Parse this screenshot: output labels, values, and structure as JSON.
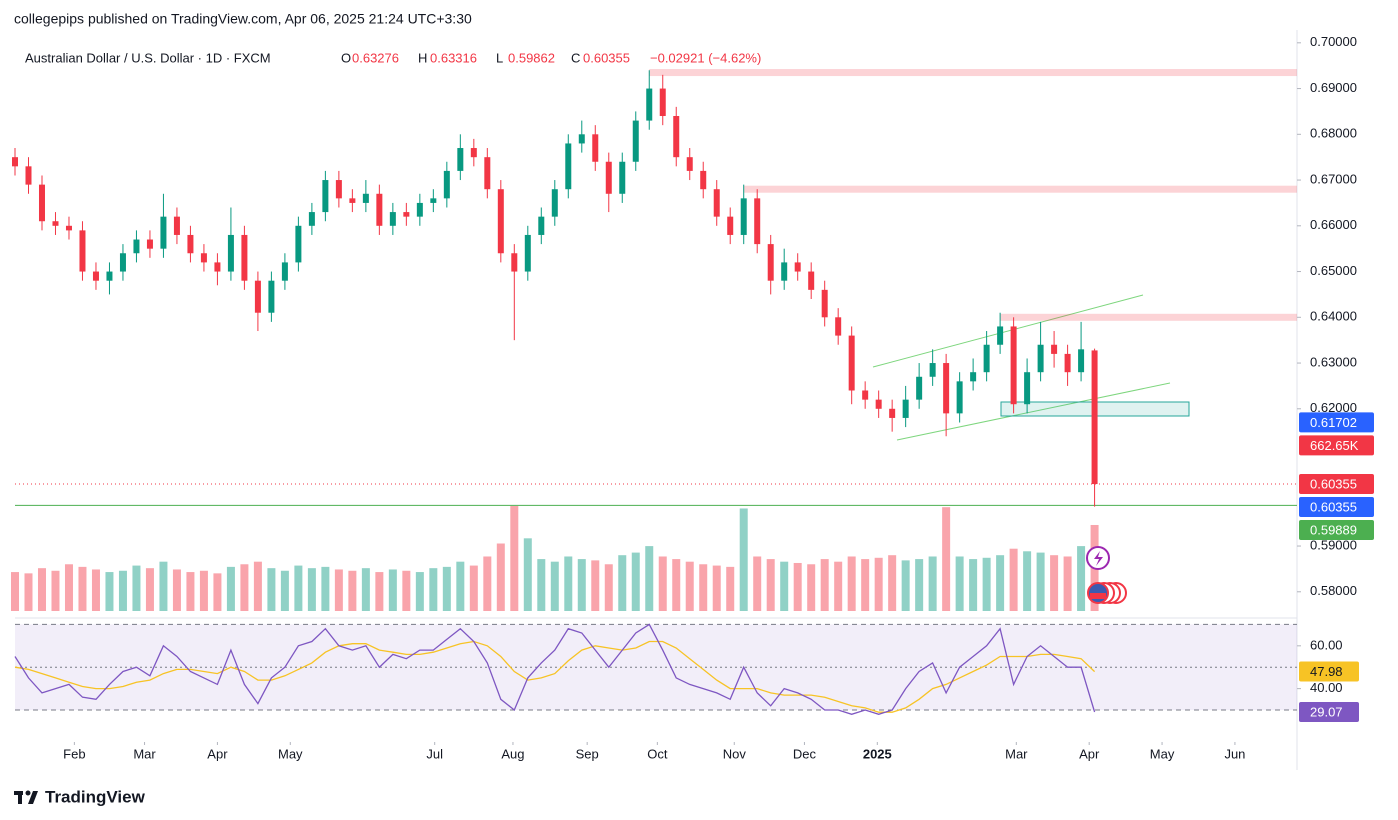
{
  "chart_data": {
    "type": "candlestick",
    "publisher": "collegepips published on TradingView.com, Apr 06, 2025 21:24 UTC+3:30",
    "symbol": "Australian Dollar / U.S. Dollar · 1D · FXCM",
    "ohlc_labels": [
      "O",
      "H",
      "L",
      "C"
    ],
    "change": "−0.02921 (−4.62%)",
    "brand": "TradingView",
    "up_color": "#089981",
    "down_color": "#f23645",
    "ohlc": [
      [
        0.675,
        0.677,
        0.671,
        0.673
      ],
      [
        0.673,
        0.675,
        0.667,
        0.669
      ],
      [
        0.669,
        0.671,
        0.659,
        0.661
      ],
      [
        0.661,
        0.663,
        0.658,
        0.66
      ],
      [
        0.66,
        0.662,
        0.657,
        0.659
      ],
      [
        0.659,
        0.661,
        0.648,
        0.65
      ],
      [
        0.65,
        0.652,
        0.646,
        0.648
      ],
      [
        0.648,
        0.652,
        0.645,
        0.65
      ],
      [
        0.65,
        0.656,
        0.648,
        0.654
      ],
      [
        0.654,
        0.659,
        0.652,
        0.657
      ],
      [
        0.657,
        0.659,
        0.653,
        0.655
      ],
      [
        0.655,
        0.667,
        0.653,
        0.662
      ],
      [
        0.662,
        0.664,
        0.656,
        0.658
      ],
      [
        0.658,
        0.66,
        0.652,
        0.654
      ],
      [
        0.654,
        0.656,
        0.65,
        0.652
      ],
      [
        0.652,
        0.654,
        0.647,
        0.65
      ],
      [
        0.65,
        0.664,
        0.648,
        0.658
      ],
      [
        0.658,
        0.66,
        0.646,
        0.648
      ],
      [
        0.648,
        0.65,
        0.637,
        0.641
      ],
      [
        0.641,
        0.65,
        0.639,
        0.648
      ],
      [
        0.648,
        0.654,
        0.646,
        0.652
      ],
      [
        0.652,
        0.662,
        0.65,
        0.66
      ],
      [
        0.66,
        0.665,
        0.658,
        0.663
      ],
      [
        0.663,
        0.672,
        0.661,
        0.67
      ],
      [
        0.67,
        0.672,
        0.664,
        0.666
      ],
      [
        0.666,
        0.668,
        0.663,
        0.665
      ],
      [
        0.665,
        0.67,
        0.663,
        0.667
      ],
      [
        0.667,
        0.669,
        0.658,
        0.66
      ],
      [
        0.66,
        0.665,
        0.658,
        0.663
      ],
      [
        0.663,
        0.665,
        0.66,
        0.662
      ],
      [
        0.662,
        0.667,
        0.66,
        0.665
      ],
      [
        0.665,
        0.668,
        0.663,
        0.666
      ],
      [
        0.666,
        0.674,
        0.664,
        0.672
      ],
      [
        0.672,
        0.68,
        0.67,
        0.677
      ],
      [
        0.677,
        0.679,
        0.673,
        0.675
      ],
      [
        0.675,
        0.677,
        0.666,
        0.668
      ],
      [
        0.668,
        0.67,
        0.652,
        0.654
      ],
      [
        0.654,
        0.656,
        0.635,
        0.65
      ],
      [
        0.65,
        0.66,
        0.648,
        0.658
      ],
      [
        0.658,
        0.664,
        0.656,
        0.662
      ],
      [
        0.662,
        0.67,
        0.66,
        0.668
      ],
      [
        0.668,
        0.68,
        0.666,
        0.678
      ],
      [
        0.678,
        0.683,
        0.676,
        0.68
      ],
      [
        0.68,
        0.682,
        0.672,
        0.674
      ],
      [
        0.674,
        0.676,
        0.663,
        0.667
      ],
      [
        0.667,
        0.676,
        0.665,
        0.674
      ],
      [
        0.674,
        0.685,
        0.672,
        0.683
      ],
      [
        0.683,
        0.694,
        0.681,
        0.69
      ],
      [
        0.69,
        0.693,
        0.682,
        0.684
      ],
      [
        0.684,
        0.686,
        0.673,
        0.675
      ],
      [
        0.675,
        0.677,
        0.67,
        0.672
      ],
      [
        0.672,
        0.674,
        0.666,
        0.668
      ],
      [
        0.668,
        0.67,
        0.66,
        0.662
      ],
      [
        0.662,
        0.664,
        0.656,
        0.658
      ],
      [
        0.658,
        0.669,
        0.656,
        0.666
      ],
      [
        0.666,
        0.668,
        0.654,
        0.656
      ],
      [
        0.656,
        0.658,
        0.645,
        0.648
      ],
      [
        0.648,
        0.655,
        0.646,
        0.652
      ],
      [
        0.652,
        0.654,
        0.648,
        0.65
      ],
      [
        0.65,
        0.652,
        0.644,
        0.646
      ],
      [
        0.646,
        0.648,
        0.638,
        0.64
      ],
      [
        0.64,
        0.642,
        0.634,
        0.636
      ],
      [
        0.636,
        0.638,
        0.621,
        0.624
      ],
      [
        0.624,
        0.626,
        0.62,
        0.622
      ],
      [
        0.622,
        0.624,
        0.618,
        0.62
      ],
      [
        0.62,
        0.622,
        0.615,
        0.618
      ],
      [
        0.618,
        0.625,
        0.616,
        0.622
      ],
      [
        0.622,
        0.63,
        0.62,
        0.627
      ],
      [
        0.627,
        0.633,
        0.625,
        0.63
      ],
      [
        0.63,
        0.632,
        0.614,
        0.619
      ],
      [
        0.619,
        0.628,
        0.617,
        0.626
      ],
      [
        0.626,
        0.631,
        0.624,
        0.628
      ],
      [
        0.628,
        0.637,
        0.626,
        0.634
      ],
      [
        0.634,
        0.641,
        0.632,
        0.638
      ],
      [
        0.638,
        0.64,
        0.619,
        0.621
      ],
      [
        0.621,
        0.631,
        0.619,
        0.628
      ],
      [
        0.628,
        0.639,
        0.626,
        0.634
      ],
      [
        0.634,
        0.637,
        0.629,
        0.632
      ],
      [
        0.632,
        0.634,
        0.625,
        0.628
      ],
      [
        0.628,
        0.639,
        0.626,
        0.633
      ],
      [
        0.63276,
        0.63316,
        0.59862,
        0.60355
      ]
    ],
    "volume": [
      300,
      290,
      330,
      310,
      360,
      340,
      320,
      300,
      310,
      350,
      330,
      380,
      320,
      300,
      310,
      290,
      340,
      360,
      380,
      330,
      310,
      350,
      330,
      340,
      320,
      310,
      330,
      300,
      320,
      310,
      300,
      330,
      340,
      380,
      350,
      420,
      520,
      809,
      560,
      400,
      380,
      420,
      400,
      390,
      360,
      430,
      450,
      500,
      420,
      400,
      380,
      360,
      350,
      340,
      790,
      420,
      400,
      380,
      370,
      360,
      400,
      380,
      420,
      400,
      410,
      430,
      390,
      400,
      420,
      800,
      420,
      400,
      410,
      430,
      480,
      460,
      450,
      430,
      420,
      500,
      662.65
    ],
    "volume_label": "662.65K",
    "rsi": [
      55,
      45,
      38,
      40,
      42,
      36,
      35,
      42,
      48,
      50,
      46,
      60,
      55,
      48,
      45,
      42,
      58,
      42,
      33,
      45,
      50,
      60,
      62,
      68,
      60,
      58,
      60,
      50,
      56,
      54,
      58,
      58,
      63,
      68,
      62,
      52,
      35,
      30,
      45,
      52,
      58,
      68,
      66,
      58,
      50,
      58,
      66,
      70,
      58,
      45,
      42,
      40,
      38,
      35,
      50,
      38,
      32,
      40,
      38,
      35,
      30,
      30,
      28,
      30,
      28,
      30,
      40,
      48,
      52,
      38,
      50,
      55,
      60,
      68,
      42,
      55,
      60,
      55,
      50,
      50,
      29.07
    ],
    "rsi_ma": [
      50,
      49,
      47,
      45,
      43,
      41,
      40,
      40,
      41,
      43,
      44,
      47,
      49,
      49,
      48,
      47,
      50,
      48,
      44,
      44,
      46,
      49,
      52,
      57,
      60,
      61,
      61,
      58,
      57,
      56,
      56,
      57,
      59,
      61,
      62,
      60,
      55,
      48,
      44,
      45,
      47,
      53,
      58,
      60,
      59,
      58,
      59,
      62,
      62,
      59,
      54,
      49,
      44,
      40,
      40,
      40,
      38,
      37,
      37,
      37,
      36,
      34,
      32,
      31,
      29,
      29,
      31,
      35,
      40,
      42,
      45,
      48,
      51,
      55,
      55,
      55,
      56,
      56,
      55,
      54,
      47.98
    ],
    "rsi_color": "#7e57c2",
    "rsi_ma_color": "#f7c325",
    "rsi_ylim": [
      16,
      73
    ],
    "rsi_bands": [
      70,
      50,
      30
    ],
    "rsi_yticks": [
      {
        "value": 60,
        "label": "60.00"
      },
      {
        "value": 40,
        "label": "40.00"
      }
    ],
    "xlim": [
      0,
      95
    ],
    "xticks": [
      {
        "value": 4.4,
        "label": "Feb"
      },
      {
        "value": 9.6,
        "label": "Mar"
      },
      {
        "value": 15,
        "label": "Apr"
      },
      {
        "value": 20.4,
        "label": "May"
      },
      {
        "value": 31.1,
        "label": "Jul"
      },
      {
        "value": 36.9,
        "label": "Aug"
      },
      {
        "value": 42.4,
        "label": "Sep"
      },
      {
        "value": 47.6,
        "label": "Oct"
      },
      {
        "value": 53.3,
        "label": "Nov"
      },
      {
        "value": 58.5,
        "label": "Dec"
      },
      {
        "value": 63.9,
        "label": "2025"
      },
      {
        "value": 74.2,
        "label": "Mar"
      },
      {
        "value": 79.6,
        "label": "Apr"
      },
      {
        "value": 85,
        "label": "May"
      },
      {
        "value": 90.4,
        "label": "Jun"
      }
    ],
    "ylim": [
      0.5758,
      0.7028
    ],
    "yticks": [
      {
        "value": 0.7,
        "label": "0.70000"
      },
      {
        "value": 0.69,
        "label": "0.69000"
      },
      {
        "value": 0.68,
        "label": "0.68000"
      },
      {
        "value": 0.67,
        "label": "0.67000"
      },
      {
        "value": 0.66,
        "label": "0.66000"
      },
      {
        "value": 0.65,
        "label": "0.65000"
      },
      {
        "value": 0.64,
        "label": "0.64000"
      },
      {
        "value": 0.63,
        "label": "0.63000"
      },
      {
        "value": 0.62,
        "label": "0.62000"
      },
      {
        "value": 0.59,
        "label": "0.59000"
      },
      {
        "value": 0.58,
        "label": "0.58000"
      }
    ],
    "zones": [
      {
        "price": 0.6935,
        "from": 47
      },
      {
        "price": 0.668,
        "from": 54
      },
      {
        "price": 0.64,
        "from": 73
      }
    ],
    "price_badges": [
      {
        "value": 0.61702,
        "color": "#2962ff"
      },
      {
        "value": 0.59889,
        "color": "#4caf50"
      }
    ],
    "close_badge_colors": [
      "#f23645",
      "#2962ff"
    ]
  }
}
